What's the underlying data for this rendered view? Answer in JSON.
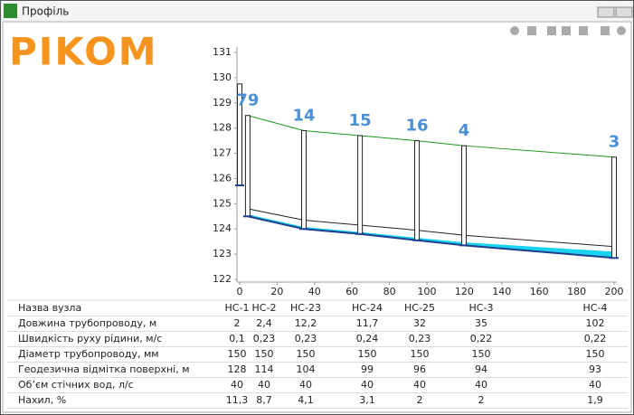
{
  "window_title": "Профіль",
  "logo": "PIKOM",
  "chart_data": {
    "type": "line",
    "xlim": [
      0,
      200
    ],
    "xticks": [
      0,
      20,
      40,
      60,
      80,
      100,
      120,
      140,
      160,
      180,
      200
    ],
    "ylim": [
      122,
      131
    ],
    "yticks": [
      122,
      123,
      124,
      125,
      126,
      127,
      128,
      129,
      130,
      131
    ],
    "x": [
      0,
      4.3,
      34.3,
      64.3,
      94.7,
      119.8,
      200
    ],
    "series": [
      {
        "color": "#1a9a1a",
        "values": [
          null,
          128.5,
          127.9,
          127.7,
          127.5,
          127.3,
          126.85
        ]
      },
      {
        "color": "#222222",
        "values": [
          null,
          124.8,
          124.35,
          124.15,
          123.95,
          123.75,
          123.3
        ]
      },
      {
        "color": "#1f3f8f",
        "values": [
          null,
          124.5,
          124.0,
          123.8,
          123.55,
          123.35,
          122.85
        ]
      }
    ],
    "water": {
      "color": "#19d3f0",
      "values": [
        null,
        124.56,
        124.06,
        123.86,
        123.63,
        123.45,
        123.08
      ]
    },
    "wells": {
      "top": [
        129.75,
        128.5,
        127.9,
        127.7,
        127.5,
        127.3,
        126.85
      ],
      "bottom": [
        125.73,
        124.5,
        124.0,
        123.8,
        123.55,
        123.35,
        122.85
      ],
      "labels": [
        null,
        79,
        14,
        15,
        16,
        4,
        3
      ],
      "label_color": "#4a8fd8"
    }
  },
  "table": {
    "header": [
      "Назва вузла",
      "НС-1",
      "НС-2",
      "НС-23",
      "НС-24",
      "НС-25",
      "НС-3",
      "НС-4"
    ],
    "rows": [
      [
        "Довжина трубопроводу, м",
        "2",
        "2,4",
        "12,2",
        "11,7",
        "32",
        "35",
        "102"
      ],
      [
        "Швидкість руху рідини, м/с",
        "0,1",
        "0,23",
        "0,23",
        "0,24",
        "0,23",
        "0,22",
        "0,22"
      ],
      [
        "Діаметр трубопроводу, мм",
        "150",
        "150",
        "150",
        "150",
        "150",
        "150",
        "150"
      ],
      [
        "Геодезична відмітка поверхні, м",
        "128",
        "114",
        "104",
        "99",
        "96",
        "94",
        "93"
      ],
      [
        "Об’єм стічних вод, л/с",
        "40",
        "40",
        "40",
        "40",
        "40",
        "40",
        "40"
      ],
      [
        "Нахил, %",
        "11,3",
        "8,7",
        "4,1",
        "3,1",
        "2",
        "2",
        "1,9"
      ]
    ]
  }
}
